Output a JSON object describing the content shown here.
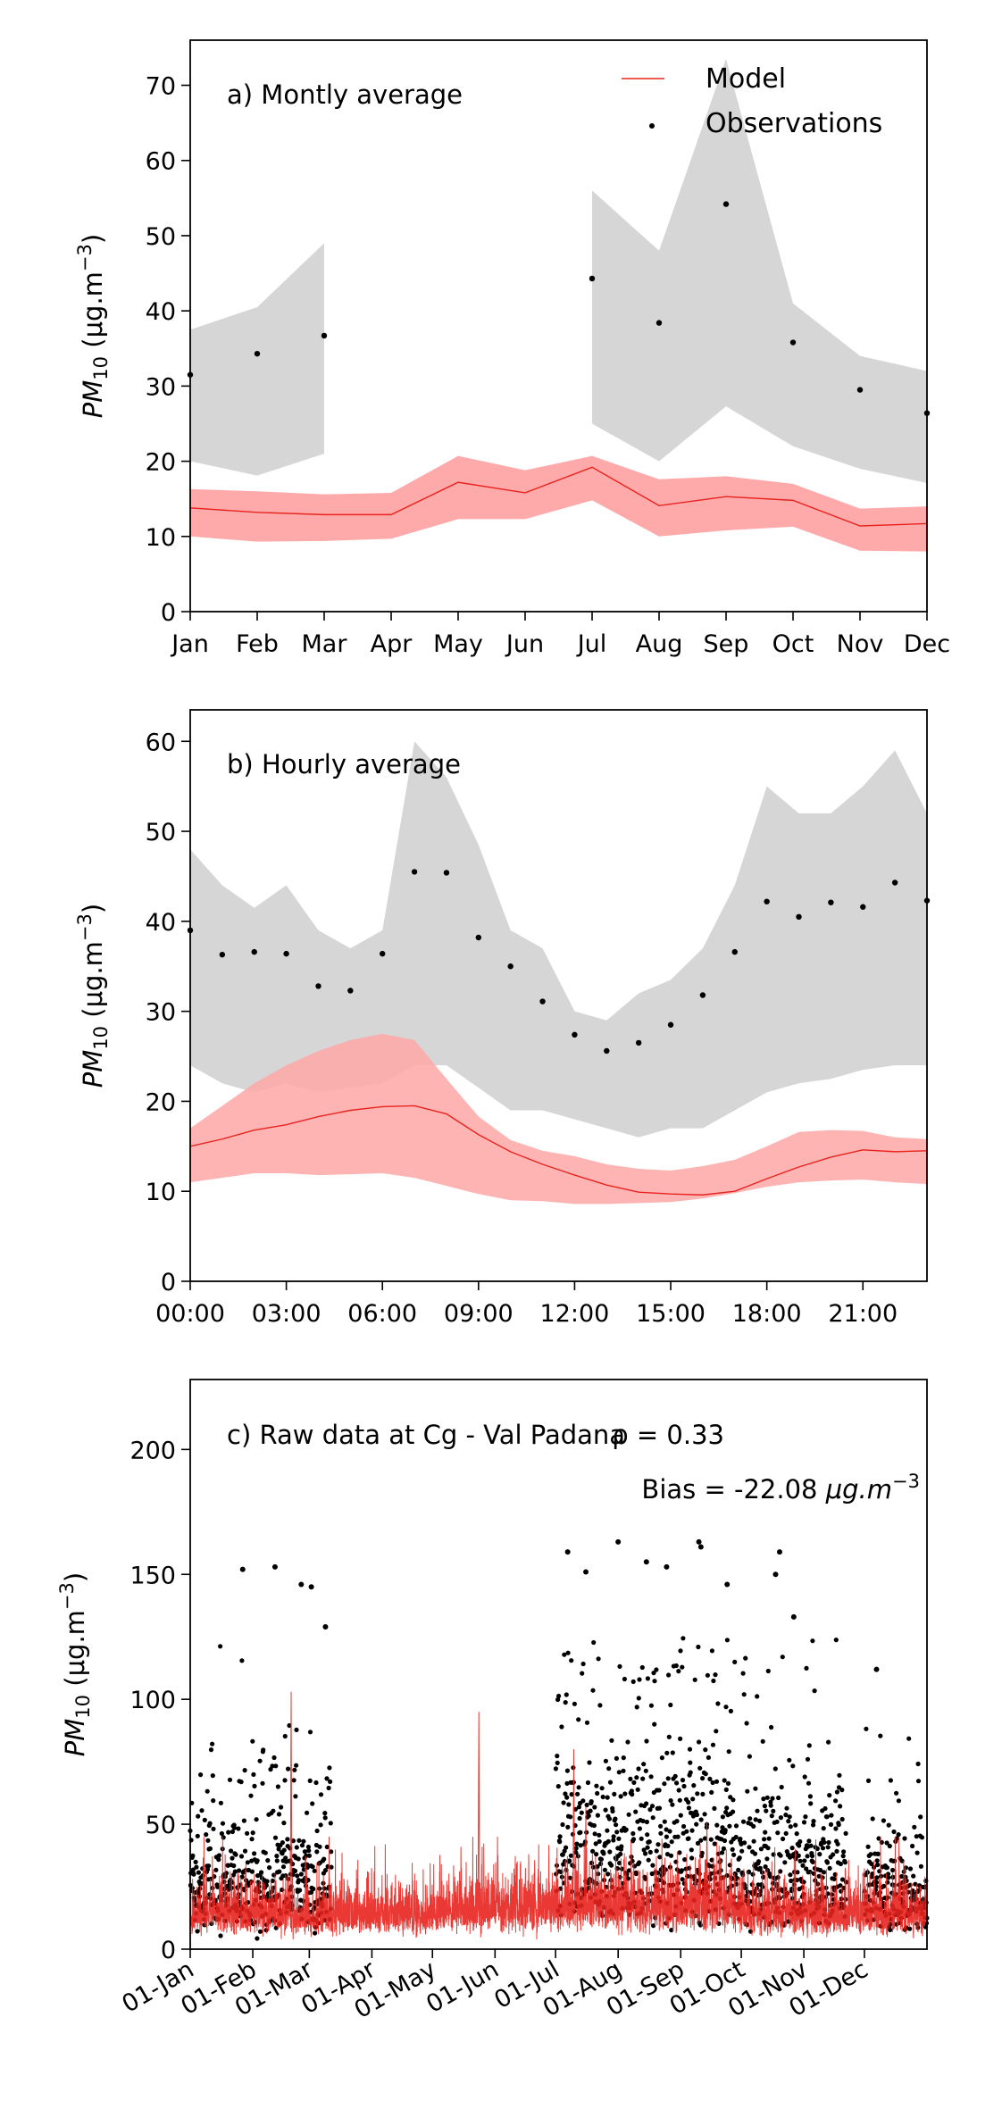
{
  "colors": {
    "model_line": "#e8231e",
    "model_band": "#ffaaaa",
    "obs_band": "#d6d6d6",
    "obs_points": "#000000"
  },
  "legend": {
    "model": "Model",
    "observations": "Observations",
    "placement": "upper-right"
  },
  "ylabel": {
    "main": "PM",
    "sub": "10",
    "unit": " (μg.m",
    "exp": "−3",
    "close": ")"
  },
  "chart_data": [
    {
      "type": "line",
      "title": "a) Montly average",
      "xlabel": "",
      "ylim": [
        0,
        76
      ],
      "yticks": [
        0,
        10,
        20,
        30,
        40,
        50,
        60,
        70
      ],
      "categories": [
        "Jan",
        "Feb",
        "Mar",
        "Apr",
        "May",
        "Jun",
        "Jul",
        "Aug",
        "Sep",
        "Oct",
        "Nov",
        "Dec"
      ],
      "grid": false,
      "series": [
        {
          "name": "Model",
          "values": [
            13.8,
            13.2,
            12.9,
            12.9,
            17.2,
            15.8,
            19.2,
            14.1,
            15.3,
            14.8,
            11.4,
            11.7
          ],
          "band_low": [
            10.0,
            9.3,
            9.4,
            9.7,
            12.3,
            12.3,
            14.8,
            10.0,
            10.8,
            11.3,
            8.1,
            8.0
          ],
          "band_high": [
            16.3,
            16.0,
            15.6,
            15.8,
            20.7,
            18.8,
            20.7,
            17.6,
            18.0,
            17.0,
            13.7,
            14.0
          ]
        },
        {
          "name": "Observations",
          "values": [
            31.5,
            34.3,
            36.7,
            null,
            null,
            null,
            44.3,
            38.4,
            54.2,
            35.8,
            29.5,
            26.4
          ],
          "band_low": [
            20.0,
            18.1,
            21.0,
            null,
            null,
            null,
            25.0,
            20.0,
            27.3,
            22.0,
            19.0,
            17.1
          ],
          "band_high": [
            37.5,
            40.5,
            49.0,
            null,
            null,
            null,
            56.0,
            48.0,
            73.5,
            41.0,
            34.0,
            32.0
          ]
        }
      ]
    },
    {
      "type": "line",
      "title": "b) Hourly average",
      "xlabel": "",
      "ylim": [
        0,
        63.5
      ],
      "yticks": [
        0,
        10,
        20,
        30,
        40,
        50,
        60
      ],
      "x": [
        0,
        1,
        2,
        3,
        4,
        5,
        6,
        7,
        8,
        9,
        10,
        11,
        12,
        13,
        14,
        15,
        16,
        17,
        18,
        19,
        20,
        21,
        22,
        23
      ],
      "xticks": [
        0,
        3,
        6,
        9,
        12,
        15,
        18,
        21
      ],
      "xtick_labels": [
        "00:00",
        "03:00",
        "06:00",
        "09:00",
        "12:00",
        "15:00",
        "18:00",
        "21:00"
      ],
      "grid": false,
      "series": [
        {
          "name": "Model",
          "values": [
            15.0,
            15.8,
            16.8,
            17.4,
            18.3,
            19.0,
            19.4,
            19.5,
            18.6,
            16.3,
            14.4,
            13.0,
            11.8,
            10.7,
            9.9,
            9.7,
            9.6,
            10.0,
            11.4,
            12.7,
            13.8,
            14.6,
            14.4,
            14.5
          ],
          "band_low": [
            11.0,
            11.5,
            12.0,
            12.0,
            11.8,
            11.9,
            12.0,
            11.5,
            10.6,
            9.7,
            9.0,
            8.9,
            8.6,
            8.6,
            8.7,
            8.8,
            9.2,
            9.8,
            10.5,
            11.0,
            11.2,
            11.3,
            11.0,
            10.8
          ],
          "band_high": [
            17.0,
            19.5,
            22.0,
            24.0,
            25.6,
            26.8,
            27.5,
            26.8,
            22.5,
            18.3,
            15.7,
            14.5,
            13.9,
            13.0,
            12.5,
            12.3,
            12.8,
            13.5,
            15.0,
            16.6,
            16.8,
            16.7,
            16.0,
            15.8
          ]
        },
        {
          "name": "Observations",
          "values": [
            39.0,
            36.3,
            36.6,
            36.4,
            32.8,
            32.3,
            36.4,
            45.5,
            45.4,
            38.2,
            35.0,
            31.1,
            27.4,
            25.6,
            26.5,
            28.5,
            31.8,
            36.6,
            42.2,
            40.5,
            42.1,
            41.6,
            44.3,
            42.3
          ],
          "band_low": [
            24.0,
            22.0,
            21.0,
            22.0,
            21.0,
            21.5,
            22.0,
            24.0,
            24.0,
            21.5,
            19.0,
            19.0,
            18.0,
            17.0,
            16.0,
            17.0,
            17.0,
            19.0,
            21.0,
            22.0,
            22.5,
            23.5,
            24.0,
            24.0
          ],
          "band_high": [
            48.0,
            44.0,
            41.5,
            44.0,
            39.0,
            37.0,
            39.0,
            60.0,
            56.0,
            48.5,
            39.0,
            37.0,
            30.0,
            29.0,
            32.0,
            33.5,
            37.0,
            44.0,
            55.0,
            52.0,
            52.0,
            55.0,
            59.0,
            52.0
          ]
        }
      ]
    },
    {
      "type": "scatter",
      "title": "c) Raw data at Cg - Val Padana",
      "annotations": {
        "rho": "ρ = 0.33",
        "bias": "Bias = -22.08 ",
        "bias_unit": "μg.m",
        "bias_exp": "−3"
      },
      "xlabel": "",
      "ylim": [
        0,
        228
      ],
      "yticks": [
        0,
        50,
        100,
        150,
        200
      ],
      "xlim_days": [
        0,
        365
      ],
      "xticks_days": [
        0,
        31,
        59,
        90,
        120,
        151,
        181,
        212,
        243,
        273,
        304,
        334
      ],
      "xtick_labels": [
        "01-Jan",
        "01-Feb",
        "01-Mar",
        "01-Apr",
        "01-May",
        "01-Jun",
        "01-Jul",
        "01-Aug",
        "01-Sep",
        "01-Oct",
        "01-Nov",
        "01-Dec"
      ],
      "grid": false,
      "series": [
        {
          "name": "Model",
          "representation": "hourly line"
        },
        {
          "name": "Observations",
          "representation": "hourly points"
        }
      ],
      "observation_periods_days": [
        [
          0,
          70
        ],
        [
          181,
          325
        ],
        [
          334,
          365
        ]
      ],
      "observation_peaks": [
        {
          "day": 26,
          "value": 152
        },
        {
          "day": 42,
          "value": 153
        },
        {
          "day": 55,
          "value": 146
        },
        {
          "day": 60,
          "value": 145
        },
        {
          "day": 67,
          "value": 129
        },
        {
          "day": 187,
          "value": 159
        },
        {
          "day": 196,
          "value": 151
        },
        {
          "day": 212,
          "value": 163
        },
        {
          "day": 226,
          "value": 155
        },
        {
          "day": 236,
          "value": 153
        },
        {
          "day": 252,
          "value": 163
        },
        {
          "day": 253,
          "value": 161
        },
        {
          "day": 266,
          "value": 146
        },
        {
          "day": 292,
          "value": 159
        },
        {
          "day": 290,
          "value": 150
        },
        {
          "day": 299,
          "value": 133
        },
        {
          "day": 340,
          "value": 112
        }
      ],
      "model_peaks": [
        {
          "day": 50,
          "value": 103
        },
        {
          "day": 143,
          "value": 95
        },
        {
          "day": 190,
          "value": 80
        },
        {
          "day": 196,
          "value": 57
        },
        {
          "day": 256,
          "value": 51
        }
      ]
    }
  ]
}
